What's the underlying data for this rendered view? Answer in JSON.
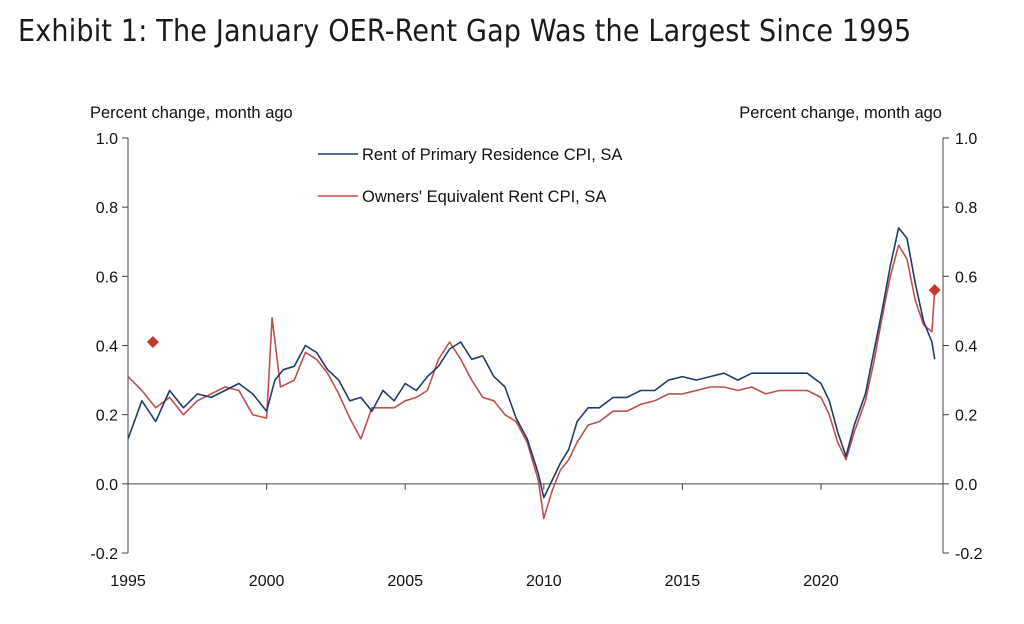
{
  "title": "Exhibit 1: The January OER-Rent Gap Was the Largest Since 1995",
  "chart_data": {
    "type": "line",
    "left_axis_label": "Percent change, month ago",
    "right_axis_label": "Percent change, month ago",
    "ylim": [
      -0.2,
      1.0
    ],
    "y_ticks": [
      "1.0",
      "0.8",
      "0.6",
      "0.4",
      "0.2",
      "0.0",
      "-0.2"
    ],
    "x_ticks": [
      "1995",
      "2000",
      "2005",
      "2010",
      "2015",
      "2020"
    ],
    "grid": false,
    "legend_placement": "top-center",
    "series": [
      {
        "name": "Rent of Primary Residence CPI, SA",
        "color": "#1f3d6b",
        "points": [
          [
            1995.0,
            0.13
          ],
          [
            1995.5,
            0.24
          ],
          [
            1996.0,
            0.18
          ],
          [
            1996.5,
            0.27
          ],
          [
            1997.0,
            0.22
          ],
          [
            1997.5,
            0.26
          ],
          [
            1998.0,
            0.25
          ],
          [
            1998.5,
            0.27
          ],
          [
            1999.0,
            0.29
          ],
          [
            1999.5,
            0.26
          ],
          [
            2000.0,
            0.21
          ],
          [
            2000.3,
            0.3
          ],
          [
            2000.6,
            0.33
          ],
          [
            2001.0,
            0.34
          ],
          [
            2001.4,
            0.4
          ],
          [
            2001.8,
            0.38
          ],
          [
            2002.2,
            0.33
          ],
          [
            2002.6,
            0.3
          ],
          [
            2003.0,
            0.24
          ],
          [
            2003.4,
            0.25
          ],
          [
            2003.8,
            0.21
          ],
          [
            2004.2,
            0.27
          ],
          [
            2004.6,
            0.24
          ],
          [
            2005.0,
            0.29
          ],
          [
            2005.4,
            0.27
          ],
          [
            2005.8,
            0.31
          ],
          [
            2006.2,
            0.34
          ],
          [
            2006.6,
            0.39
          ],
          [
            2007.0,
            0.41
          ],
          [
            2007.4,
            0.36
          ],
          [
            2007.8,
            0.37
          ],
          [
            2008.2,
            0.31
          ],
          [
            2008.6,
            0.28
          ],
          [
            2009.0,
            0.19
          ],
          [
            2009.4,
            0.13
          ],
          [
            2009.8,
            0.03
          ],
          [
            2010.0,
            -0.04
          ],
          [
            2010.3,
            0.01
          ],
          [
            2010.6,
            0.06
          ],
          [
            2010.9,
            0.1
          ],
          [
            2011.2,
            0.18
          ],
          [
            2011.6,
            0.22
          ],
          [
            2012.0,
            0.22
          ],
          [
            2012.5,
            0.25
          ],
          [
            2013.0,
            0.25
          ],
          [
            2013.5,
            0.27
          ],
          [
            2014.0,
            0.27
          ],
          [
            2014.5,
            0.3
          ],
          [
            2015.0,
            0.31
          ],
          [
            2015.5,
            0.3
          ],
          [
            2016.0,
            0.31
          ],
          [
            2016.5,
            0.32
          ],
          [
            2017.0,
            0.3
          ],
          [
            2017.5,
            0.32
          ],
          [
            2018.0,
            0.32
          ],
          [
            2018.5,
            0.32
          ],
          [
            2019.0,
            0.32
          ],
          [
            2019.5,
            0.32
          ],
          [
            2020.0,
            0.29
          ],
          [
            2020.3,
            0.24
          ],
          [
            2020.6,
            0.15
          ],
          [
            2020.9,
            0.08
          ],
          [
            2021.2,
            0.17
          ],
          [
            2021.6,
            0.26
          ],
          [
            2021.9,
            0.38
          ],
          [
            2022.2,
            0.5
          ],
          [
            2022.5,
            0.63
          ],
          [
            2022.8,
            0.74
          ],
          [
            2023.1,
            0.71
          ],
          [
            2023.4,
            0.58
          ],
          [
            2023.7,
            0.47
          ],
          [
            2024.0,
            0.41
          ],
          [
            2024.1,
            0.36
          ]
        ]
      },
      {
        "name": "Owners' Equivalent Rent CPI, SA",
        "color": "#c0504d",
        "points": [
          [
            1995.0,
            0.31
          ],
          [
            1995.5,
            0.27
          ],
          [
            1996.0,
            0.22
          ],
          [
            1996.5,
            0.25
          ],
          [
            1997.0,
            0.2
          ],
          [
            1997.5,
            0.24
          ],
          [
            1998.0,
            0.26
          ],
          [
            1998.5,
            0.28
          ],
          [
            1999.0,
            0.27
          ],
          [
            1999.5,
            0.2
          ],
          [
            2000.0,
            0.19
          ],
          [
            2000.2,
            0.48
          ],
          [
            2000.5,
            0.28
          ],
          [
            2001.0,
            0.3
          ],
          [
            2001.4,
            0.38
          ],
          [
            2001.8,
            0.36
          ],
          [
            2002.2,
            0.32
          ],
          [
            2002.6,
            0.26
          ],
          [
            2003.0,
            0.19
          ],
          [
            2003.4,
            0.13
          ],
          [
            2003.8,
            0.22
          ],
          [
            2004.2,
            0.22
          ],
          [
            2004.6,
            0.22
          ],
          [
            2005.0,
            0.24
          ],
          [
            2005.4,
            0.25
          ],
          [
            2005.8,
            0.27
          ],
          [
            2006.2,
            0.36
          ],
          [
            2006.6,
            0.41
          ],
          [
            2007.0,
            0.36
          ],
          [
            2007.4,
            0.3
          ],
          [
            2007.8,
            0.25
          ],
          [
            2008.2,
            0.24
          ],
          [
            2008.6,
            0.2
          ],
          [
            2009.0,
            0.18
          ],
          [
            2009.4,
            0.12
          ],
          [
            2009.8,
            0.01
          ],
          [
            2010.0,
            -0.1
          ],
          [
            2010.3,
            -0.02
          ],
          [
            2010.6,
            0.04
          ],
          [
            2010.9,
            0.07
          ],
          [
            2011.2,
            0.12
          ],
          [
            2011.6,
            0.17
          ],
          [
            2012.0,
            0.18
          ],
          [
            2012.5,
            0.21
          ],
          [
            2013.0,
            0.21
          ],
          [
            2013.5,
            0.23
          ],
          [
            2014.0,
            0.24
          ],
          [
            2014.5,
            0.26
          ],
          [
            2015.0,
            0.26
          ],
          [
            2015.5,
            0.27
          ],
          [
            2016.0,
            0.28
          ],
          [
            2016.5,
            0.28
          ],
          [
            2017.0,
            0.27
          ],
          [
            2017.5,
            0.28
          ],
          [
            2018.0,
            0.26
          ],
          [
            2018.5,
            0.27
          ],
          [
            2019.0,
            0.27
          ],
          [
            2019.5,
            0.27
          ],
          [
            2020.0,
            0.25
          ],
          [
            2020.3,
            0.2
          ],
          [
            2020.6,
            0.12
          ],
          [
            2020.9,
            0.07
          ],
          [
            2021.2,
            0.15
          ],
          [
            2021.6,
            0.24
          ],
          [
            2021.9,
            0.35
          ],
          [
            2022.2,
            0.48
          ],
          [
            2022.5,
            0.6
          ],
          [
            2022.8,
            0.69
          ],
          [
            2023.1,
            0.65
          ],
          [
            2023.4,
            0.53
          ],
          [
            2023.7,
            0.46
          ],
          [
            2024.0,
            0.44
          ],
          [
            2024.1,
            0.56
          ]
        ]
      }
    ],
    "markers": [
      {
        "x": 1995.9,
        "y": 0.41,
        "color": "#c0392b"
      },
      {
        "x": 2024.1,
        "y": 0.56,
        "color": "#c0392b"
      }
    ]
  }
}
